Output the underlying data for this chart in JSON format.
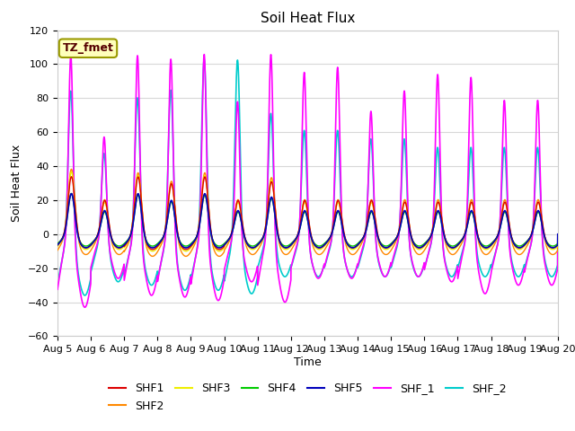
{
  "title": "Soil Heat Flux",
  "ylabel": "Soil Heat Flux",
  "xlabel": "Time",
  "ylim": [
    -60,
    120
  ],
  "xtick_labels": [
    "Aug 5",
    "Aug 6",
    "Aug 7",
    "Aug 8",
    "Aug 9",
    "Aug 10",
    "Aug 11",
    "Aug 12",
    "Aug 13",
    "Aug 14",
    "Aug 15",
    "Aug 16",
    "Aug 17",
    "Aug 18",
    "Aug 19",
    "Aug 20"
  ],
  "series": {
    "SHF1": {
      "color": "#dd0000",
      "lw": 1.0
    },
    "SHF2": {
      "color": "#ff8800",
      "lw": 1.0
    },
    "SHF3": {
      "color": "#eeee00",
      "lw": 1.0
    },
    "SHF4": {
      "color": "#00cc00",
      "lw": 1.0
    },
    "SHF5": {
      "color": "#0000bb",
      "lw": 1.2
    },
    "SHF_1": {
      "color": "#ff00ff",
      "lw": 1.2
    },
    "SHF_2": {
      "color": "#00cccc",
      "lw": 1.2
    }
  },
  "annotation_text": "TZ_fmet",
  "annotation_box_facecolor": "#ffffbb",
  "annotation_box_edgecolor": "#999900",
  "annotation_text_color": "#550000",
  "title_fontsize": 11,
  "label_fontsize": 9,
  "tick_fontsize": 8,
  "legend_fontsize": 9,
  "fig_facecolor": "#ffffff",
  "axes_facecolor": "#ffffff",
  "grid_color": "#d8d8d8",
  "shf1_peaks": [
    35,
    21,
    35,
    31,
    35,
    21,
    32,
    21,
    21,
    21,
    20,
    20,
    20,
    20,
    20
  ],
  "shf1_troughs": [
    -8,
    -8,
    -9,
    -9,
    -9,
    -8,
    -8,
    -8,
    -8,
    -8,
    -8,
    -8,
    -8,
    -8,
    -8
  ],
  "shf2_peaks": [
    40,
    22,
    38,
    33,
    38,
    22,
    35,
    22,
    22,
    22,
    22,
    22,
    22,
    22,
    22
  ],
  "shf2_troughs": [
    -12,
    -12,
    -13,
    -13,
    -13,
    -12,
    -12,
    -12,
    -12,
    -12,
    -12,
    -12,
    -12,
    -12,
    -12
  ],
  "shf3_peaks": [
    38,
    20,
    36,
    31,
    36,
    20,
    33,
    20,
    20,
    20,
    20,
    20,
    20,
    20,
    20
  ],
  "shf3_troughs": [
    -9,
    -9,
    -10,
    -10,
    -10,
    -9,
    -9,
    -9,
    -9,
    -9,
    -9,
    -9,
    -9,
    -9,
    -9
  ],
  "shf4_peaks": [
    25,
    14,
    24,
    20,
    24,
    14,
    22,
    14,
    14,
    14,
    14,
    14,
    14,
    14,
    14
  ],
  "shf4_troughs": [
    -7,
    -7,
    -7,
    -7,
    -7,
    -7,
    -7,
    -7,
    -7,
    -7,
    -7,
    -7,
    -7,
    -7,
    -7
  ],
  "shf5_peaks": [
    25,
    15,
    25,
    21,
    25,
    15,
    23,
    15,
    15,
    15,
    15,
    15,
    15,
    15,
    15
  ],
  "shf5_troughs": [
    -8,
    -8,
    -8,
    -8,
    -8,
    -8,
    -8,
    -8,
    -8,
    -8,
    -8,
    -8,
    -8,
    -8,
    -8
  ],
  "shf_1_peaks": [
    110,
    60,
    109,
    107,
    110,
    81,
    110,
    98,
    101,
    75,
    87,
    97,
    96,
    82,
    82
  ],
  "shf_1_troughs": [
    -43,
    -26,
    -36,
    -37,
    -39,
    -28,
    -40,
    -26,
    -26,
    -25,
    -25,
    -28,
    -35,
    -30,
    -30
  ],
  "shf_2_peaks": [
    90,
    52,
    85,
    90,
    108,
    108,
    75,
    65,
    65,
    60,
    60,
    55,
    55,
    55,
    55
  ],
  "shf_2_troughs": [
    -36,
    -28,
    -30,
    -33,
    -33,
    -35,
    -25,
    -25,
    -25,
    -25,
    -25,
    -25,
    -25,
    -25,
    -25
  ]
}
